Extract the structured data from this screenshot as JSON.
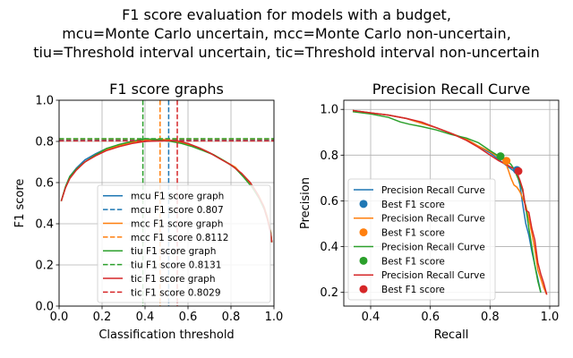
{
  "figure": {
    "suptitle": [
      "F1 score evaluation for models with a budget,",
      "mcu=Monte Carlo uncertain, mcc=Monte Carlo non-uncertain,",
      "tiu=Threshold interval uncertain, tic=Threshold interval non-uncertain"
    ]
  },
  "colors": {
    "mcu": "#1f77b4",
    "mcc": "#ff7f0e",
    "tiu": "#2ca02c",
    "tic": "#d62728"
  },
  "chart_data": [
    {
      "type": "line",
      "title": "F1 score graphs",
      "xlabel": "Classification threshold",
      "ylabel": "F1 score",
      "xlim": [
        0.0,
        1.0
      ],
      "ylim": [
        0.0,
        1.0
      ],
      "xticks": [
        "0.0",
        "0.2",
        "0.4",
        "0.6",
        "0.8",
        "1.0"
      ],
      "yticks": [
        "0.0",
        "0.2",
        "0.4",
        "0.6",
        "0.8",
        "1.0"
      ],
      "grid": true,
      "legend": "lower-center",
      "series": [
        {
          "name": "mcu F1 score graph",
          "model": "mcu",
          "style": "solid",
          "x": [
            0.01,
            0.03,
            0.05,
            0.08,
            0.12,
            0.17,
            0.22,
            0.28,
            0.34,
            0.4,
            0.46,
            0.51,
            0.56,
            0.61,
            0.66,
            0.71,
            0.76,
            0.81,
            0.86,
            0.9,
            0.93,
            0.955,
            0.97,
            0.985,
            0.99
          ],
          "y": [
            0.51,
            0.58,
            0.63,
            0.67,
            0.71,
            0.74,
            0.765,
            0.78,
            0.795,
            0.8,
            0.805,
            0.807,
            0.8,
            0.785,
            0.765,
            0.74,
            0.71,
            0.68,
            0.63,
            0.58,
            0.53,
            0.48,
            0.43,
            0.36,
            0.31
          ]
        },
        {
          "name": "mcu F1 score 0.807",
          "model": "mcu",
          "style": "dashed",
          "threshold": 0.51,
          "value": 0.807
        },
        {
          "name": "mcc F1 score graph",
          "model": "mcc",
          "style": "solid",
          "x": [
            0.01,
            0.03,
            0.05,
            0.08,
            0.12,
            0.17,
            0.22,
            0.28,
            0.34,
            0.4,
            0.47,
            0.52,
            0.57,
            0.62,
            0.67,
            0.72,
            0.77,
            0.82,
            0.86,
            0.9,
            0.93,
            0.955,
            0.97,
            0.985,
            0.99
          ],
          "y": [
            0.51,
            0.58,
            0.625,
            0.665,
            0.7,
            0.735,
            0.76,
            0.78,
            0.795,
            0.805,
            0.811,
            0.805,
            0.795,
            0.78,
            0.76,
            0.735,
            0.705,
            0.675,
            0.63,
            0.585,
            0.535,
            0.48,
            0.43,
            0.36,
            0.31
          ]
        },
        {
          "name": "mcc F1 score 0.8112",
          "model": "mcc",
          "style": "dashed",
          "threshold": 0.47,
          "value": 0.8112
        },
        {
          "name": "tiu F1 score graph",
          "model": "tiu",
          "style": "solid",
          "x": [
            0.01,
            0.03,
            0.05,
            0.08,
            0.12,
            0.17,
            0.22,
            0.28,
            0.34,
            0.4,
            0.46,
            0.52,
            0.57,
            0.62,
            0.67,
            0.72,
            0.77,
            0.82,
            0.86,
            0.9,
            0.93,
            0.955,
            0.97,
            0.985,
            0.99
          ],
          "y": [
            0.51,
            0.58,
            0.63,
            0.665,
            0.7,
            0.735,
            0.765,
            0.785,
            0.8,
            0.813,
            0.808,
            0.8,
            0.79,
            0.775,
            0.755,
            0.735,
            0.705,
            0.67,
            0.625,
            0.575,
            0.525,
            0.47,
            0.42,
            0.355,
            0.31
          ]
        },
        {
          "name": "tiu F1 score 0.8131",
          "model": "tiu",
          "style": "dashed",
          "threshold": 0.39,
          "value": 0.8131
        },
        {
          "name": "tic F1 score graph",
          "model": "tic",
          "style": "solid",
          "x": [
            0.01,
            0.03,
            0.05,
            0.08,
            0.12,
            0.17,
            0.22,
            0.28,
            0.34,
            0.4,
            0.46,
            0.51,
            0.55,
            0.6,
            0.65,
            0.7,
            0.75,
            0.8,
            0.85,
            0.89,
            0.92,
            0.95,
            0.97,
            0.985,
            0.99
          ],
          "y": [
            0.51,
            0.575,
            0.62,
            0.66,
            0.7,
            0.73,
            0.755,
            0.775,
            0.79,
            0.8,
            0.802,
            0.803,
            0.8029,
            0.79,
            0.77,
            0.745,
            0.715,
            0.685,
            0.645,
            0.6,
            0.55,
            0.49,
            0.42,
            0.35,
            0.31
          ]
        },
        {
          "name": "tic F1 score 0.8029",
          "model": "tic",
          "style": "dashed",
          "threshold": 0.55,
          "value": 0.8029
        }
      ]
    },
    {
      "type": "line",
      "title": "Precision Recall Curve",
      "xlabel": "Recall",
      "ylabel": "Precision",
      "xlim": [
        0.31,
        1.03
      ],
      "ylim": [
        0.14,
        1.04
      ],
      "xticks": [
        "0.4",
        "0.6",
        "0.8",
        "1.0"
      ],
      "yticks": [
        "0.2",
        "0.4",
        "0.6",
        "0.8",
        "1.0"
      ],
      "grid": true,
      "legend": "lower-left",
      "series": [
        {
          "name": "Precision Recall Curve",
          "model": "mcu",
          "x": [
            0.34,
            0.4,
            0.46,
            0.52,
            0.57,
            0.62,
            0.67,
            0.72,
            0.76,
            0.8,
            0.83,
            0.86,
            0.88,
            0.89,
            0.9,
            0.91,
            0.92,
            0.93,
            0.94,
            0.95,
            0.96,
            0.97
          ],
          "y": [
            0.995,
            0.985,
            0.975,
            0.96,
            0.94,
            0.92,
            0.895,
            0.87,
            0.84,
            0.81,
            0.78,
            0.75,
            0.73,
            0.72,
            0.67,
            0.58,
            0.5,
            0.45,
            0.38,
            0.32,
            0.26,
            0.2
          ]
        },
        {
          "name": "Best F1 score",
          "model": "mcu",
          "marker": true,
          "point": [
            0.89,
            0.735
          ]
        },
        {
          "name": "Precision Recall Curve",
          "model": "mcc",
          "x": [
            0.34,
            0.4,
            0.46,
            0.52,
            0.57,
            0.62,
            0.67,
            0.72,
            0.76,
            0.8,
            0.83,
            0.85,
            0.86,
            0.87,
            0.88,
            0.89,
            0.9,
            0.92,
            0.94,
            0.95,
            0.96,
            0.98,
            0.99
          ],
          "y": [
            0.995,
            0.985,
            0.975,
            0.96,
            0.94,
            0.92,
            0.895,
            0.87,
            0.84,
            0.815,
            0.79,
            0.775,
            0.74,
            0.7,
            0.67,
            0.66,
            0.64,
            0.58,
            0.46,
            0.39,
            0.3,
            0.22,
            0.19
          ]
        },
        {
          "name": "Best F1 score",
          "model": "mcc",
          "marker": true,
          "point": [
            0.855,
            0.775
          ]
        },
        {
          "name": "Precision Recall Curve",
          "model": "tiu",
          "x": [
            0.34,
            0.4,
            0.46,
            0.5,
            0.53,
            0.57,
            0.62,
            0.67,
            0.72,
            0.76,
            0.8,
            0.83,
            0.85,
            0.87,
            0.88,
            0.89,
            0.9,
            0.91,
            0.92,
            0.93,
            0.94,
            0.95,
            0.96,
            0.97
          ],
          "y": [
            0.99,
            0.98,
            0.965,
            0.945,
            0.935,
            0.925,
            0.91,
            0.89,
            0.875,
            0.855,
            0.82,
            0.795,
            0.78,
            0.76,
            0.74,
            0.71,
            0.68,
            0.64,
            0.57,
            0.48,
            0.4,
            0.32,
            0.25,
            0.2
          ]
        },
        {
          "name": "Best F1 score",
          "model": "tiu",
          "marker": true,
          "point": [
            0.835,
            0.795
          ]
        },
        {
          "name": "Precision Recall Curve",
          "model": "tic",
          "x": [
            0.34,
            0.4,
            0.46,
            0.52,
            0.57,
            0.62,
            0.67,
            0.72,
            0.76,
            0.8,
            0.83,
            0.86,
            0.88,
            0.89,
            0.9,
            0.91,
            0.92,
            0.93,
            0.94,
            0.95,
            0.96,
            0.97,
            0.98,
            0.99
          ],
          "y": [
            0.995,
            0.985,
            0.975,
            0.96,
            0.945,
            0.92,
            0.895,
            0.865,
            0.835,
            0.8,
            0.775,
            0.755,
            0.74,
            0.725,
            0.69,
            0.65,
            0.56,
            0.55,
            0.48,
            0.43,
            0.33,
            0.28,
            0.24,
            0.19
          ]
        },
        {
          "name": "Best F1 score",
          "model": "tic",
          "marker": true,
          "point": [
            0.895,
            0.73
          ]
        }
      ]
    }
  ]
}
